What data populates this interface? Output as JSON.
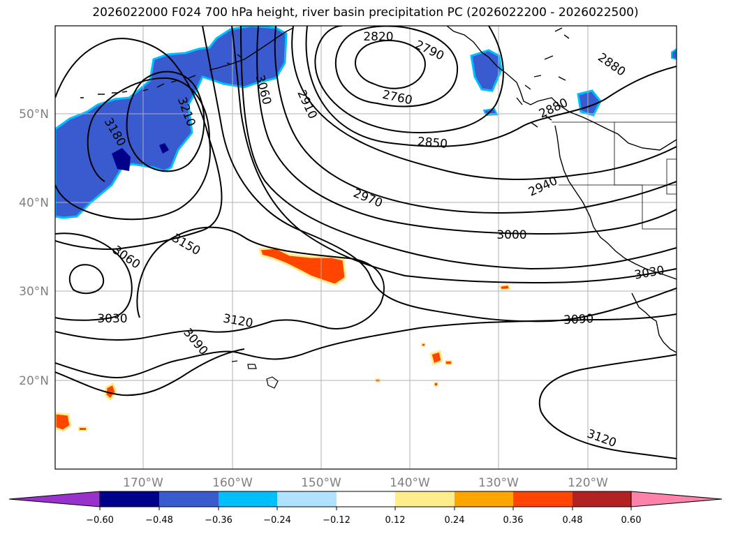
{
  "title": "2026022000 F024 700 hPa height, river basin precipitation PC (2026022200 - 2026022500)",
  "map": {
    "lat_ticks": [
      "50°N",
      "40°N",
      "30°N",
      "20°N"
    ],
    "lon_ticks": [
      "170°W",
      "160°W",
      "150°W",
      "140°W",
      "130°W",
      "120°W"
    ],
    "contour_labels": [
      {
        "text": "2820",
        "rot": 0
      },
      {
        "text": "2790",
        "rot": 25
      },
      {
        "text": "2760",
        "rot": 12
      },
      {
        "text": "2880",
        "rot": 35
      },
      {
        "text": "2880",
        "rot": -25
      },
      {
        "text": "3060",
        "rot": 75
      },
      {
        "text": "2910",
        "rot": 65
      },
      {
        "text": "3210",
        "rot": 70
      },
      {
        "text": "3180",
        "rot": 60
      },
      {
        "text": "2850",
        "rot": 5
      },
      {
        "text": "2940",
        "rot": -25
      },
      {
        "text": "2970",
        "rot": 22
      },
      {
        "text": "3000",
        "rot": 0
      },
      {
        "text": "3150",
        "rot": 30
      },
      {
        "text": "3060",
        "rot": 35
      },
      {
        "text": "3030",
        "rot": 0
      },
      {
        "text": "3030",
        "rot": -10
      },
      {
        "text": "3120",
        "rot": 10
      },
      {
        "text": "3090",
        "rot": 50
      },
      {
        "text": "3090",
        "rot": -3
      },
      {
        "text": "3120",
        "rot": 20
      }
    ]
  },
  "colorbar": {
    "colors": [
      "#9932cc",
      "#00008b",
      "#3a5bd0",
      "#00bfff",
      "#b0e2ff",
      "#ffffff",
      "#ffec8b",
      "#ffa500",
      "#ff4500",
      "#b22222",
      "#ff82ab"
    ],
    "labels": [
      "−0.60",
      "−0.48",
      "−0.36",
      "−0.24",
      "−0.12",
      "0.12",
      "0.24",
      "0.36",
      "0.48",
      "0.60"
    ]
  }
}
